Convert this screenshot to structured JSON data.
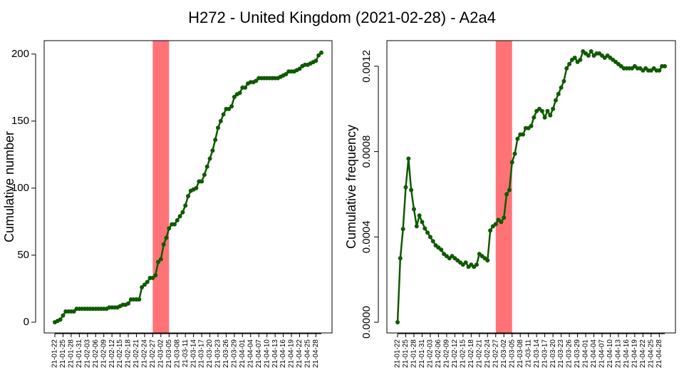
{
  "title": "H272 - United Kingdom (2021-02-28) - A2a4",
  "chart_data": [
    {
      "type": "line",
      "ylabel": "Cumulative number",
      "categories": [
        "21-01-22",
        null,
        null,
        "21-01-25",
        null,
        null,
        "21-01-28",
        null,
        null,
        "21-01-31",
        null,
        null,
        "21-02-03",
        null,
        null,
        "21-02-06",
        null,
        null,
        "21-02-09",
        null,
        null,
        "21-02-12",
        null,
        null,
        "21-02-15",
        null,
        null,
        "21-02-18",
        null,
        null,
        "21-02-21",
        null,
        null,
        "21-02-24",
        null,
        null,
        "21-02-27",
        null,
        null,
        "21-03-02",
        null,
        null,
        "21-03-05",
        null,
        null,
        "21-03-08",
        null,
        null,
        "21-03-11",
        null,
        null,
        "21-03-14",
        null,
        null,
        "21-03-17",
        null,
        null,
        "21-03-20",
        null,
        null,
        "21-03-23",
        null,
        null,
        "21-03-26",
        null,
        null,
        "21-03-29",
        null,
        null,
        "21-04-01",
        null,
        null,
        "21-04-04",
        null,
        null,
        "21-04-07",
        null,
        null,
        "21-04-10",
        null,
        null,
        "21-04-13",
        null,
        null,
        "21-04-16",
        null,
        null,
        "21-04-19",
        null,
        null,
        "21-04-22",
        null,
        null,
        "21-04-25",
        null,
        null,
        "21-04-28",
        null,
        null
      ],
      "series": [
        {
          "color": "#0f5a00",
          "values": [
            0,
            1,
            2,
            5,
            8,
            8,
            8,
            8,
            10,
            10,
            10,
            10,
            10,
            10,
            10,
            10,
            10,
            10,
            10,
            10,
            11,
            11,
            11,
            11,
            12,
            13,
            13,
            14,
            17,
            17,
            17,
            17,
            26,
            28,
            30,
            33,
            33,
            35,
            45,
            47,
            58,
            63,
            70,
            73,
            73,
            76,
            79,
            82,
            87,
            94,
            98,
            99,
            100,
            105,
            105,
            110,
            116,
            122,
            128,
            136,
            145,
            150,
            155,
            159,
            159,
            161,
            168,
            170,
            171,
            175,
            175,
            178,
            179,
            179,
            180,
            182,
            182,
            182,
            182,
            182,
            182,
            182,
            182,
            183,
            184,
            185,
            187,
            187,
            187,
            188,
            189,
            191,
            192,
            192,
            193,
            194,
            195,
            199,
            201
          ]
        }
      ],
      "ylim": [
        -8,
        210
      ],
      "yticks": [
        0,
        50,
        100,
        150,
        200
      ],
      "highlight": [
        "21-02-27",
        "21-03-05"
      ],
      "highlight_color": "#ff7377"
    },
    {
      "type": "line",
      "ylabel": "Cumulative frequency",
      "categories": [
        "21-01-22",
        null,
        null,
        "21-01-25",
        null,
        null,
        "21-01-28",
        null,
        null,
        "21-01-31",
        null,
        null,
        "21-02-03",
        null,
        null,
        "21-02-06",
        null,
        null,
        "21-02-09",
        null,
        null,
        "21-02-12",
        null,
        null,
        "21-02-15",
        null,
        null,
        "21-02-18",
        null,
        null,
        "21-02-21",
        null,
        null,
        "21-02-24",
        null,
        null,
        "21-02-27",
        null,
        null,
        "21-03-02",
        null,
        null,
        "21-03-05",
        null,
        null,
        "21-03-08",
        null,
        null,
        "21-03-11",
        null,
        null,
        "21-03-14",
        null,
        null,
        "21-03-17",
        null,
        null,
        "21-03-20",
        null,
        null,
        "21-03-23",
        null,
        null,
        "21-03-26",
        null,
        null,
        "21-03-29",
        null,
        null,
        "21-04-01",
        null,
        null,
        "21-04-04",
        null,
        null,
        "21-04-07",
        null,
        null,
        "21-04-10",
        null,
        null,
        "21-04-13",
        null,
        null,
        "21-04-16",
        null,
        null,
        "21-04-19",
        null,
        null,
        "21-04-22",
        null,
        null,
        "21-04-25",
        null,
        null,
        "21-04-28",
        null,
        null
      ],
      "series": [
        {
          "color": "#0f5a00",
          "values": [
            0,
            0.0003,
            0.000437,
            0.000633,
            0.000767,
            0.00062,
            0.00053,
            0.00045,
            0.0005,
            0.00047,
            0.00044,
            0.00042,
            0.0004,
            0.00038,
            0.00036,
            0.00035,
            0.00034,
            0.00032,
            0.00031,
            0.0003,
            0.00031,
            0.0003,
            0.00029,
            0.00028,
            0.00027,
            0.00028,
            0.00026,
            0.00027,
            0.00026,
            0.00027,
            0.00032,
            0.00031,
            0.0003,
            0.00029,
            0.00043,
            0.00045,
            0.00046,
            0.00048,
            0.00047,
            0.00049,
            0.0006,
            0.00062,
            0.00075,
            0.00079,
            0.00086,
            0.00088,
            0.00088,
            0.00091,
            0.00091,
            0.00092,
            0.00096,
            0.00099,
            0.001,
            0.00099,
            0.00096,
            0.00099,
            0.00097,
            0.001,
            0.00104,
            0.00107,
            0.0011,
            0.00113,
            0.00119,
            0.00121,
            0.00123,
            0.00124,
            0.00122,
            0.00123,
            0.00127,
            0.00126,
            0.00125,
            0.00127,
            0.00125,
            0.00126,
            0.00126,
            0.00125,
            0.00124,
            0.00125,
            0.00124,
            0.00123,
            0.00122,
            0.00121,
            0.0012,
            0.00119,
            0.00119,
            0.00119,
            0.00119,
            0.0012,
            0.00119,
            0.00119,
            0.00118,
            0.00119,
            0.00118,
            0.00118,
            0.00119,
            0.00118,
            0.00118,
            0.0012,
            0.0012
          ]
        }
      ],
      "ylim": [
        -5e-05,
        0.00132
      ],
      "yticks": [
        {
          "value": 0,
          "label": "0.0000"
        },
        {
          "value": 0.0004,
          "label": "0.0004"
        },
        {
          "value": 0.0008,
          "label": "0.0008"
        },
        {
          "value": 0.0012,
          "label": "0.0012"
        }
      ],
      "highlight": [
        "21-02-27",
        "21-03-05"
      ],
      "highlight_color": "#ff7377"
    }
  ]
}
